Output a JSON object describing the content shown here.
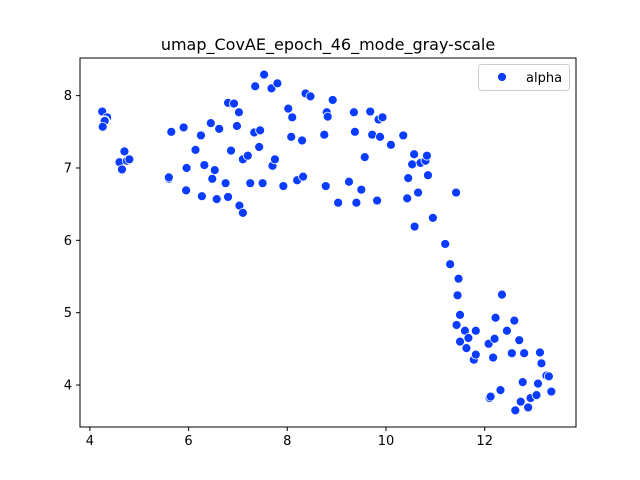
{
  "chart_data": {
    "type": "scatter",
    "title": "umap_CovAE_epoch_46_mode_gray-scale",
    "xlabel": "",
    "ylabel": "",
    "xlim": [
      3.8,
      13.85
    ],
    "ylim": [
      3.42,
      8.52
    ],
    "x_ticks": [
      4,
      6,
      8,
      10,
      12
    ],
    "y_ticks": [
      4,
      5,
      6,
      7,
      8
    ],
    "x_tick_labels": [
      "4",
      "6",
      "8",
      "10",
      "12"
    ],
    "y_tick_labels": [
      "4",
      "5",
      "6",
      "7",
      "8"
    ],
    "grid": false,
    "legend_position": "top-right",
    "colors": {
      "marker": "#0a3cff",
      "marker_edge": "#ffffff"
    },
    "series": [
      {
        "name": "alpha",
        "points": [
          [
            4.25,
            7.78
          ],
          [
            4.35,
            7.7
          ],
          [
            4.31,
            7.66
          ],
          [
            4.3,
            7.65
          ],
          [
            4.26,
            7.57
          ],
          [
            4.6,
            7.08
          ],
          [
            4.7,
            7.23
          ],
          [
            4.75,
            7.1
          ],
          [
            4.8,
            7.12
          ],
          [
            4.65,
            6.98
          ],
          [
            5.6,
            6.85
          ],
          [
            5.6,
            6.87
          ],
          [
            5.65,
            7.5
          ],
          [
            5.9,
            7.56
          ],
          [
            5.95,
            6.69
          ],
          [
            5.96,
            7.0
          ],
          [
            6.14,
            7.25
          ],
          [
            6.25,
            7.45
          ],
          [
            6.27,
            6.61
          ],
          [
            6.32,
            7.04
          ],
          [
            6.45,
            7.62
          ],
          [
            6.48,
            6.85
          ],
          [
            6.53,
            6.97
          ],
          [
            6.57,
            6.57
          ],
          [
            6.62,
            7.54
          ],
          [
            6.75,
            6.79
          ],
          [
            6.8,
            6.6
          ],
          [
            6.8,
            7.9
          ],
          [
            6.86,
            7.24
          ],
          [
            6.92,
            7.89
          ],
          [
            6.98,
            7.58
          ],
          [
            7.02,
            7.77
          ],
          [
            7.03,
            6.48
          ],
          [
            7.1,
            7.12
          ],
          [
            7.1,
            6.38
          ],
          [
            7.2,
            7.17
          ],
          [
            7.25,
            6.79
          ],
          [
            7.33,
            7.49
          ],
          [
            7.35,
            8.13
          ],
          [
            7.43,
            7.29
          ],
          [
            7.45,
            7.52
          ],
          [
            7.5,
            6.79
          ],
          [
            7.53,
            8.29
          ],
          [
            7.68,
            8.1
          ],
          [
            7.7,
            7.03
          ],
          [
            7.75,
            7.12
          ],
          [
            7.8,
            8.17
          ],
          [
            7.92,
            6.75
          ],
          [
            8.02,
            7.82
          ],
          [
            8.08,
            7.43
          ],
          [
            8.1,
            7.7
          ],
          [
            8.2,
            6.83
          ],
          [
            8.3,
            7.38
          ],
          [
            8.32,
            6.88
          ],
          [
            8.37,
            8.03
          ],
          [
            8.47,
            7.99
          ],
          [
            8.75,
            7.46
          ],
          [
            8.78,
            6.75
          ],
          [
            8.8,
            7.77
          ],
          [
            8.82,
            7.71
          ],
          [
            8.92,
            7.94
          ],
          [
            9.03,
            6.52
          ],
          [
            9.25,
            6.81
          ],
          [
            9.35,
            7.77
          ],
          [
            9.37,
            7.5
          ],
          [
            9.4,
            6.52
          ],
          [
            9.5,
            6.7
          ],
          [
            9.57,
            7.15
          ],
          [
            9.68,
            7.78
          ],
          [
            9.72,
            7.46
          ],
          [
            9.82,
            6.55
          ],
          [
            9.85,
            7.67
          ],
          [
            9.88,
            7.43
          ],
          [
            9.93,
            7.7
          ],
          [
            10.1,
            7.32
          ],
          [
            10.35,
            7.45
          ],
          [
            10.43,
            6.58
          ],
          [
            10.45,
            6.86
          ],
          [
            10.53,
            7.05
          ],
          [
            10.57,
            7.19
          ],
          [
            10.58,
            6.19
          ],
          [
            10.65,
            6.66
          ],
          [
            10.7,
            7.07
          ],
          [
            10.8,
            7.1
          ],
          [
            10.83,
            7.17
          ],
          [
            10.85,
            6.9
          ],
          [
            10.95,
            6.31
          ],
          [
            11.2,
            5.95
          ],
          [
            11.3,
            5.67
          ],
          [
            11.42,
            6.66
          ],
          [
            11.43,
            4.83
          ],
          [
            11.45,
            5.24
          ],
          [
            11.47,
            5.47
          ],
          [
            11.5,
            4.97
          ],
          [
            11.5,
            4.6
          ],
          [
            11.6,
            4.75
          ],
          [
            11.63,
            4.51
          ],
          [
            11.67,
            4.65
          ],
          [
            11.78,
            4.35
          ],
          [
            11.82,
            4.75
          ],
          [
            11.82,
            4.42
          ],
          [
            12.08,
            4.57
          ],
          [
            12.1,
            3.82
          ],
          [
            12.12,
            3.84
          ],
          [
            12.17,
            4.38
          ],
          [
            12.2,
            4.64
          ],
          [
            12.22,
            4.93
          ],
          [
            12.32,
            3.93
          ],
          [
            12.35,
            5.25
          ],
          [
            12.45,
            4.75
          ],
          [
            12.55,
            4.44
          ],
          [
            12.6,
            4.89
          ],
          [
            12.62,
            3.65
          ],
          [
            12.7,
            4.62
          ],
          [
            12.73,
            3.77
          ],
          [
            12.77,
            4.04
          ],
          [
            12.8,
            4.44
          ],
          [
            12.88,
            3.69
          ],
          [
            12.93,
            3.82
          ],
          [
            13.05,
            3.86
          ],
          [
            13.08,
            4.02
          ],
          [
            13.12,
            4.45
          ],
          [
            13.15,
            4.3
          ],
          [
            13.25,
            4.13
          ],
          [
            13.3,
            4.12
          ],
          [
            13.35,
            3.91
          ]
        ]
      }
    ]
  }
}
